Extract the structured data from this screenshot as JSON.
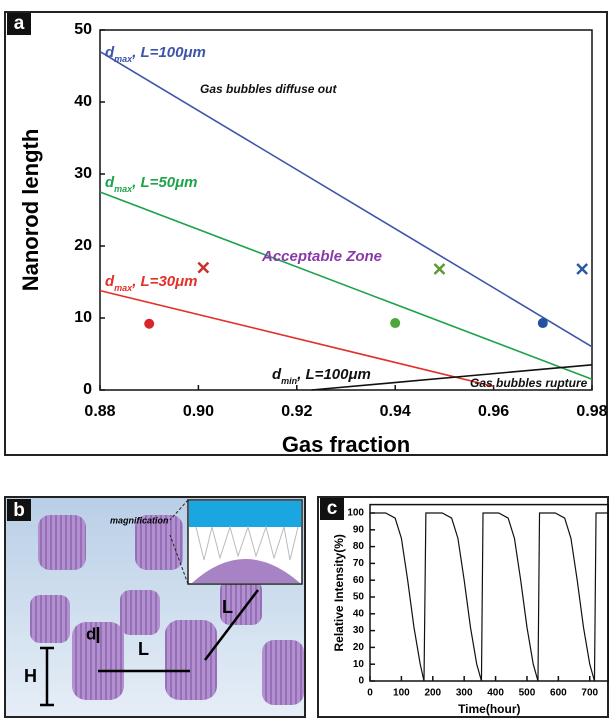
{
  "chart_data": [
    {
      "type": "line",
      "panel_label": "a",
      "x_label": "Gas fraction",
      "y_label": "Nanorod length",
      "xlim": [
        0.88,
        0.98
      ],
      "ylim": [
        0,
        50
      ],
      "xticks": [
        0.88,
        {
          "value": 0.9,
          "label": "0.90"
        },
        0.92,
        0.94,
        0.96,
        0.98
      ],
      "yticks": [
        0,
        10,
        20,
        30,
        40,
        50
      ],
      "series": [
        {
          "name": "d",
          "name_sub": "max",
          "name_rest": ", L=100μm",
          "color": "#3d55a8",
          "x": [
            0.88,
            0.98
          ],
          "values": [
            47,
            6
          ]
        },
        {
          "name": "d",
          "name_sub": "max",
          "name_rest": ", L=50μm",
          "color": "#1ea34c",
          "x": [
            0.88,
            0.98
          ],
          "values": [
            27.5,
            1.5
          ]
        },
        {
          "name": "d",
          "name_sub": "max",
          "name_rest": ", L=30μm",
          "color": "#e2302a",
          "x": [
            0.88,
            0.96
          ],
          "values": [
            13.8,
            0.5
          ]
        },
        {
          "name": "d",
          "name_sub": "min",
          "name_rest": ", L=100μm",
          "color": "#111111",
          "x": [
            0.923,
            0.98
          ],
          "values": [
            0,
            3.5
          ]
        }
      ],
      "points": [
        {
          "x": 0.89,
          "y": 9.2,
          "color": "#d9262a",
          "marker": "circle"
        },
        {
          "x": 0.901,
          "y": 17,
          "color": "#c8302a",
          "marker": "x"
        },
        {
          "x": 0.94,
          "y": 9.3,
          "color": "#4ea53a",
          "marker": "circle"
        },
        {
          "x": 0.949,
          "y": 16.8,
          "color": "#5a9a36",
          "marker": "x"
        },
        {
          "x": 0.97,
          "y": 9.3,
          "color": "#2451a0",
          "marker": "circle"
        },
        {
          "x": 0.978,
          "y": 16.8,
          "color": "#2a5aa0",
          "marker": "x"
        }
      ],
      "annotations": [
        "Gas bubbles diffuse out",
        "Acceptable Zone",
        "Gas bubbles rupture"
      ]
    },
    {
      "type": "line",
      "panel_label": "c",
      "x_label": "Time(hour)",
      "y_label": "Relative Intensity(%)",
      "xlim": [
        0,
        760
      ],
      "ylim": [
        0,
        105
      ],
      "xticks": [
        0,
        100,
        200,
        300,
        400,
        500,
        600,
        700
      ],
      "yticks": [
        0,
        10,
        20,
        30,
        40,
        50,
        60,
        70,
        80,
        90,
        100
      ],
      "series": [
        {
          "color": "#111111",
          "x": [
            0,
            50,
            80,
            100,
            120,
            140,
            160,
            172,
            178,
            230,
            260,
            280,
            300,
            320,
            340,
            355,
            360,
            410,
            440,
            460,
            480,
            500,
            520,
            535,
            540,
            590,
            620,
            640,
            660,
            680,
            700,
            715,
            720,
            760
          ],
          "values": [
            100,
            100,
            97,
            85,
            60,
            32,
            10,
            0,
            100,
            100,
            97,
            85,
            60,
            32,
            10,
            0,
            100,
            100,
            97,
            85,
            60,
            32,
            10,
            0,
            100,
            100,
            97,
            85,
            60,
            32,
            10,
            0,
            100,
            100
          ]
        }
      ]
    }
  ],
  "diagram": {
    "panel_label": "b",
    "inset_label": "magnification",
    "labels": [
      "d",
      "H",
      "L",
      "L"
    ]
  }
}
